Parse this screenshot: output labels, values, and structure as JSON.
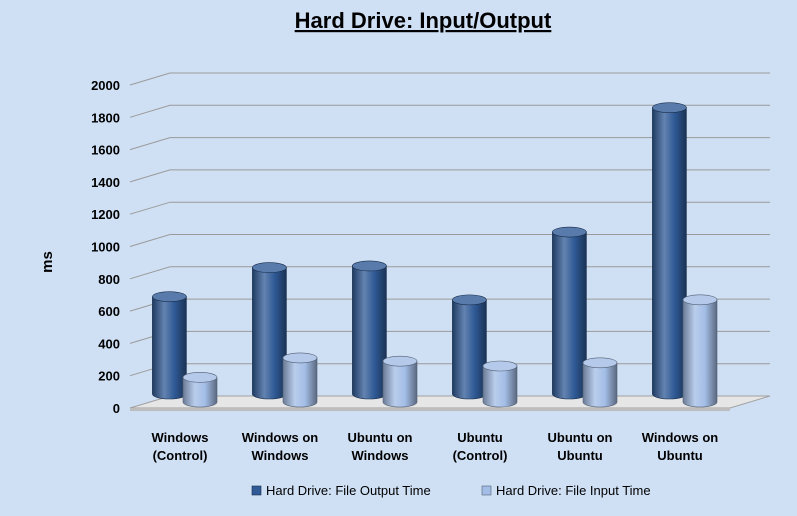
{
  "chart_data": {
    "type": "bar",
    "title": "Hard Drive: Input/Output",
    "xlabel": "",
    "ylabel": "ms",
    "ylim": [
      0,
      2000
    ],
    "yticks": [
      0,
      200,
      400,
      600,
      800,
      1000,
      1200,
      1400,
      1600,
      1800,
      2000
    ],
    "grid": true,
    "legend_position": "bottom",
    "three_d": true,
    "categories": [
      [
        "Windows",
        "(Control)"
      ],
      [
        "Windows on",
        "Windows"
      ],
      [
        "Ubuntu on",
        "Windows"
      ],
      [
        "Ubuntu",
        "(Control)"
      ],
      [
        "Ubuntu on",
        "Ubuntu"
      ],
      [
        "Windows on",
        "Ubuntu"
      ]
    ],
    "series": [
      {
        "name": "Hard Drive: File Output Time",
        "color": "#2f5a96",
        "values": [
          640,
          820,
          830,
          620,
          1040,
          1810
        ]
      },
      {
        "name": "Hard Drive: File Input Time",
        "color": "#a3bde6",
        "values": [
          190,
          310,
          290,
          260,
          280,
          670
        ]
      }
    ]
  }
}
